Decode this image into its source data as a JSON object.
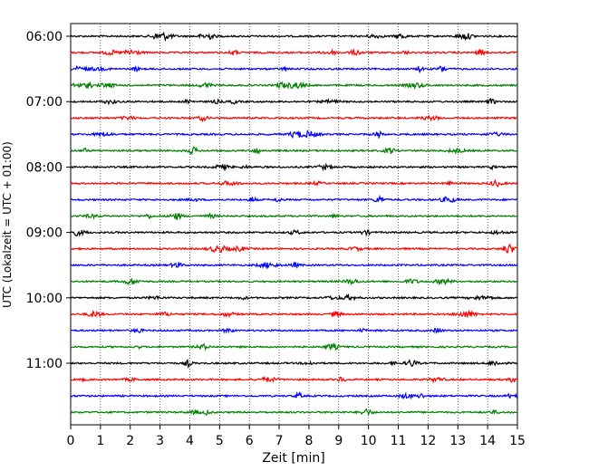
{
  "chart_data": {
    "type": "line",
    "title": "",
    "xlabel": "Zeit  [min]",
    "ylabel": "UTC (Lokalzeit = UTC + 01:00)",
    "xlim": [
      0,
      15
    ],
    "x_ticks": [
      0,
      1,
      2,
      3,
      4,
      5,
      6,
      7,
      8,
      9,
      10,
      11,
      12,
      13,
      14,
      15
    ],
    "x_tick_labels": [
      "0",
      "1",
      "2",
      "3",
      "4",
      "5",
      "6",
      "7",
      "8",
      "9",
      "10",
      "11",
      "12",
      "13",
      "14",
      "15"
    ],
    "y_tick_labels": [
      "06:00",
      "07:00",
      "08:00",
      "09:00",
      "10:00",
      "11:00"
    ],
    "y_tick_rows": [
      0,
      4,
      8,
      12,
      16,
      20
    ],
    "trace_count": 24,
    "trace_minutes_each": 15,
    "trace_start": "06:00",
    "trace_colors": [
      "#000000",
      "#ff0000",
      "#0000ff",
      "#008000"
    ],
    "x_grid": "dotted vertical at each minute",
    "legend": "none"
  }
}
